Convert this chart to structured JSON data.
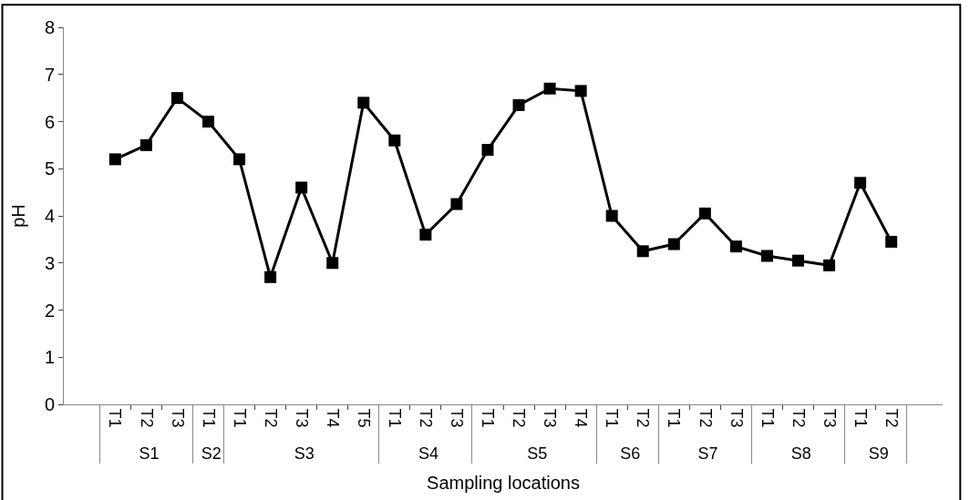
{
  "chart_data": {
    "type": "line",
    "xlabel": "Sampling locations",
    "ylabel": "pH",
    "categories": [
      [
        "S1",
        "T1"
      ],
      [
        null,
        "T2"
      ],
      [
        null,
        "T3"
      ],
      [
        "S2",
        "T1"
      ],
      [
        "S3",
        "T1"
      ],
      [
        null,
        "T2"
      ],
      [
        null,
        "T3"
      ],
      [
        null,
        "T4"
      ],
      [
        null,
        "T5"
      ],
      [
        "S4",
        "T1"
      ],
      [
        null,
        "T2"
      ],
      [
        null,
        "T3"
      ],
      [
        "S5",
        "T1"
      ],
      [
        null,
        "T2"
      ],
      [
        null,
        "T3"
      ],
      [
        null,
        "T4"
      ],
      [
        "S6",
        "T1"
      ],
      [
        null,
        "T2"
      ],
      [
        "S7",
        "T1"
      ],
      [
        null,
        "T2"
      ],
      [
        null,
        "T3"
      ],
      [
        "S8",
        "T1"
      ],
      [
        null,
        "T2"
      ],
      [
        null,
        "T3"
      ],
      [
        "S9",
        "T1"
      ],
      [
        null,
        "T2"
      ]
    ],
    "series": [
      {
        "color": "#000000",
        "values": [
          5.2,
          5.5,
          6.5,
          6.0,
          5.2,
          2.7,
          4.6,
          3.0,
          6.4,
          5.6,
          3.6,
          4.25,
          5.4,
          6.35,
          6.7,
          6.65,
          4.0,
          3.25,
          3.4,
          4.05,
          3.35,
          3.15,
          3.05,
          2.95,
          4.7,
          3.45
        ]
      }
    ],
    "ylim": [
      0,
      8
    ],
    "yticks": [
      0,
      1,
      2,
      3,
      4,
      5,
      6,
      7,
      8
    ],
    "marker": "square",
    "line_style": "solid"
  }
}
